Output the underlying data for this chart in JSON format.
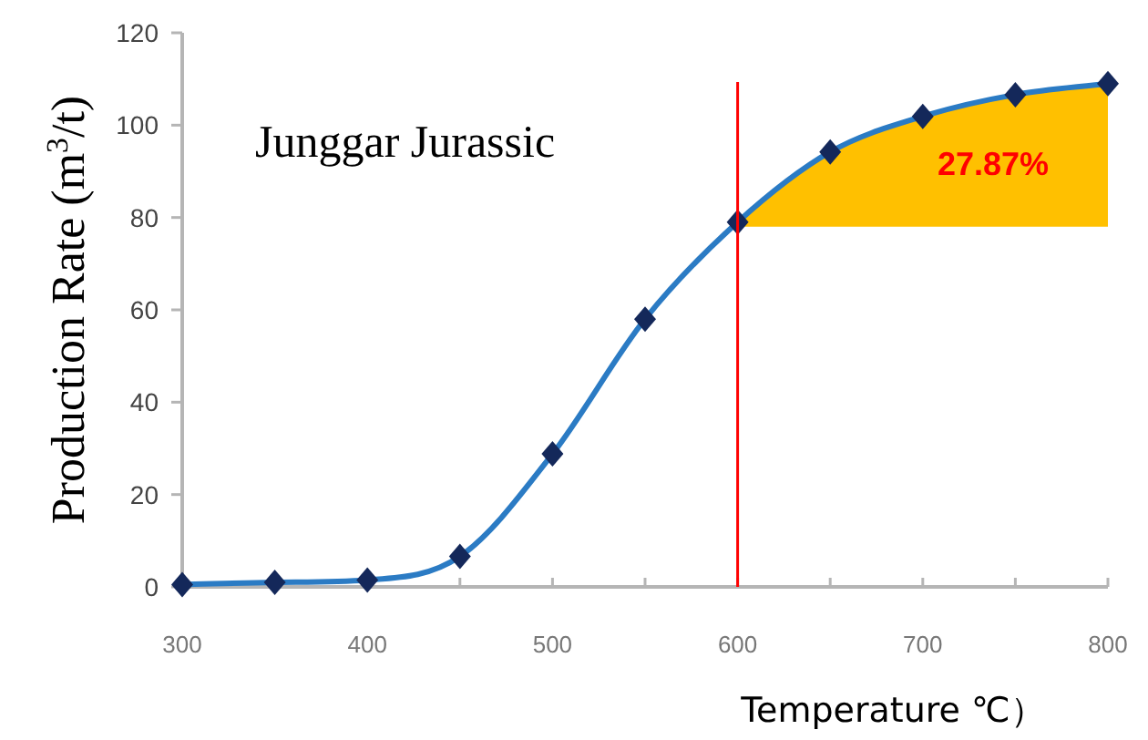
{
  "chart_data": {
    "type": "line",
    "xlabel": "Temperature ℃）",
    "ylabel": "Production Rate (m$^{3}$/t)",
    "x": [
      300,
      350,
      400,
      450,
      500,
      550,
      600,
      650,
      700,
      750,
      800
    ],
    "xlim": [
      300,
      800
    ],
    "ylim": [
      0,
      120
    ],
    "xticks": [
      300,
      {
        "value": 350,
        "label": null
      },
      400,
      {
        "value": 450,
        "label": null
      },
      500,
      {
        "value": 550,
        "label": null
      },
      600,
      {
        "value": 650,
        "label": null
      },
      700,
      {
        "value": 750,
        "label": null
      },
      800
    ],
    "yticks": [
      0,
      20,
      40,
      60,
      80,
      100,
      120
    ],
    "marker": "diamond",
    "series": [
      {
        "color": "#2b7bc4",
        "values": [
          0.5,
          1,
          1.5,
          6.6,
          28.8,
          58,
          79,
          94.2,
          101.9,
          106.6,
          109
        ],
        "lower": [
          null,
          null,
          null,
          null,
          null,
          null,
          78,
          78,
          78,
          78,
          78
        ],
        "upper": [
          null,
          null,
          null,
          null,
          null,
          null,
          79,
          94.2,
          101.9,
          106.6,
          109
        ]
      }
    ],
    "ref_lines": [
      {
        "axis": "x",
        "value": 600,
        "color": "#ff0000"
      }
    ],
    "annotations": [
      "Junggar Jurassic",
      "27.87%"
    ]
  }
}
